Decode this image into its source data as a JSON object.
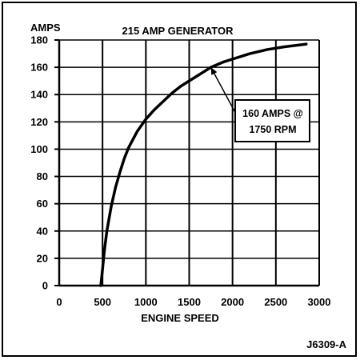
{
  "chart_data": {
    "type": "line",
    "title": "215 AMP GENERATOR",
    "xlabel": "ENGINE SPEED",
    "ylabel": "AMPS",
    "xlim": [
      0,
      3000
    ],
    "ylim": [
      0,
      180
    ],
    "xticks": [
      "0",
      "500",
      "1000",
      "1500",
      "2000",
      "2500",
      "3000"
    ],
    "yticks": [
      "0",
      "20",
      "40",
      "60",
      "80",
      "100",
      "120",
      "140",
      "160",
      "180"
    ],
    "grid": true,
    "series": [
      {
        "x": [
          480,
          500,
          520,
          550,
          600,
          650,
          700,
          750,
          800,
          900,
          1000,
          1100,
          1200,
          1300,
          1400,
          1500,
          1600,
          1750,
          1900,
          2000,
          2200,
          2400,
          2600,
          2850
        ],
        "y": [
          0,
          12,
          25,
          40,
          58,
          72,
          83,
          93,
          101,
          113,
          122,
          129,
          135,
          141,
          146,
          150,
          154,
          160,
          164,
          166,
          170,
          173,
          175,
          177
        ]
      }
    ],
    "annotation": {
      "line1": "160 AMPS @",
      "line2": "1750 RPM",
      "x": 1750,
      "y": 160
    },
    "figure_id": "J6309-A",
    "color": "#000000"
  }
}
